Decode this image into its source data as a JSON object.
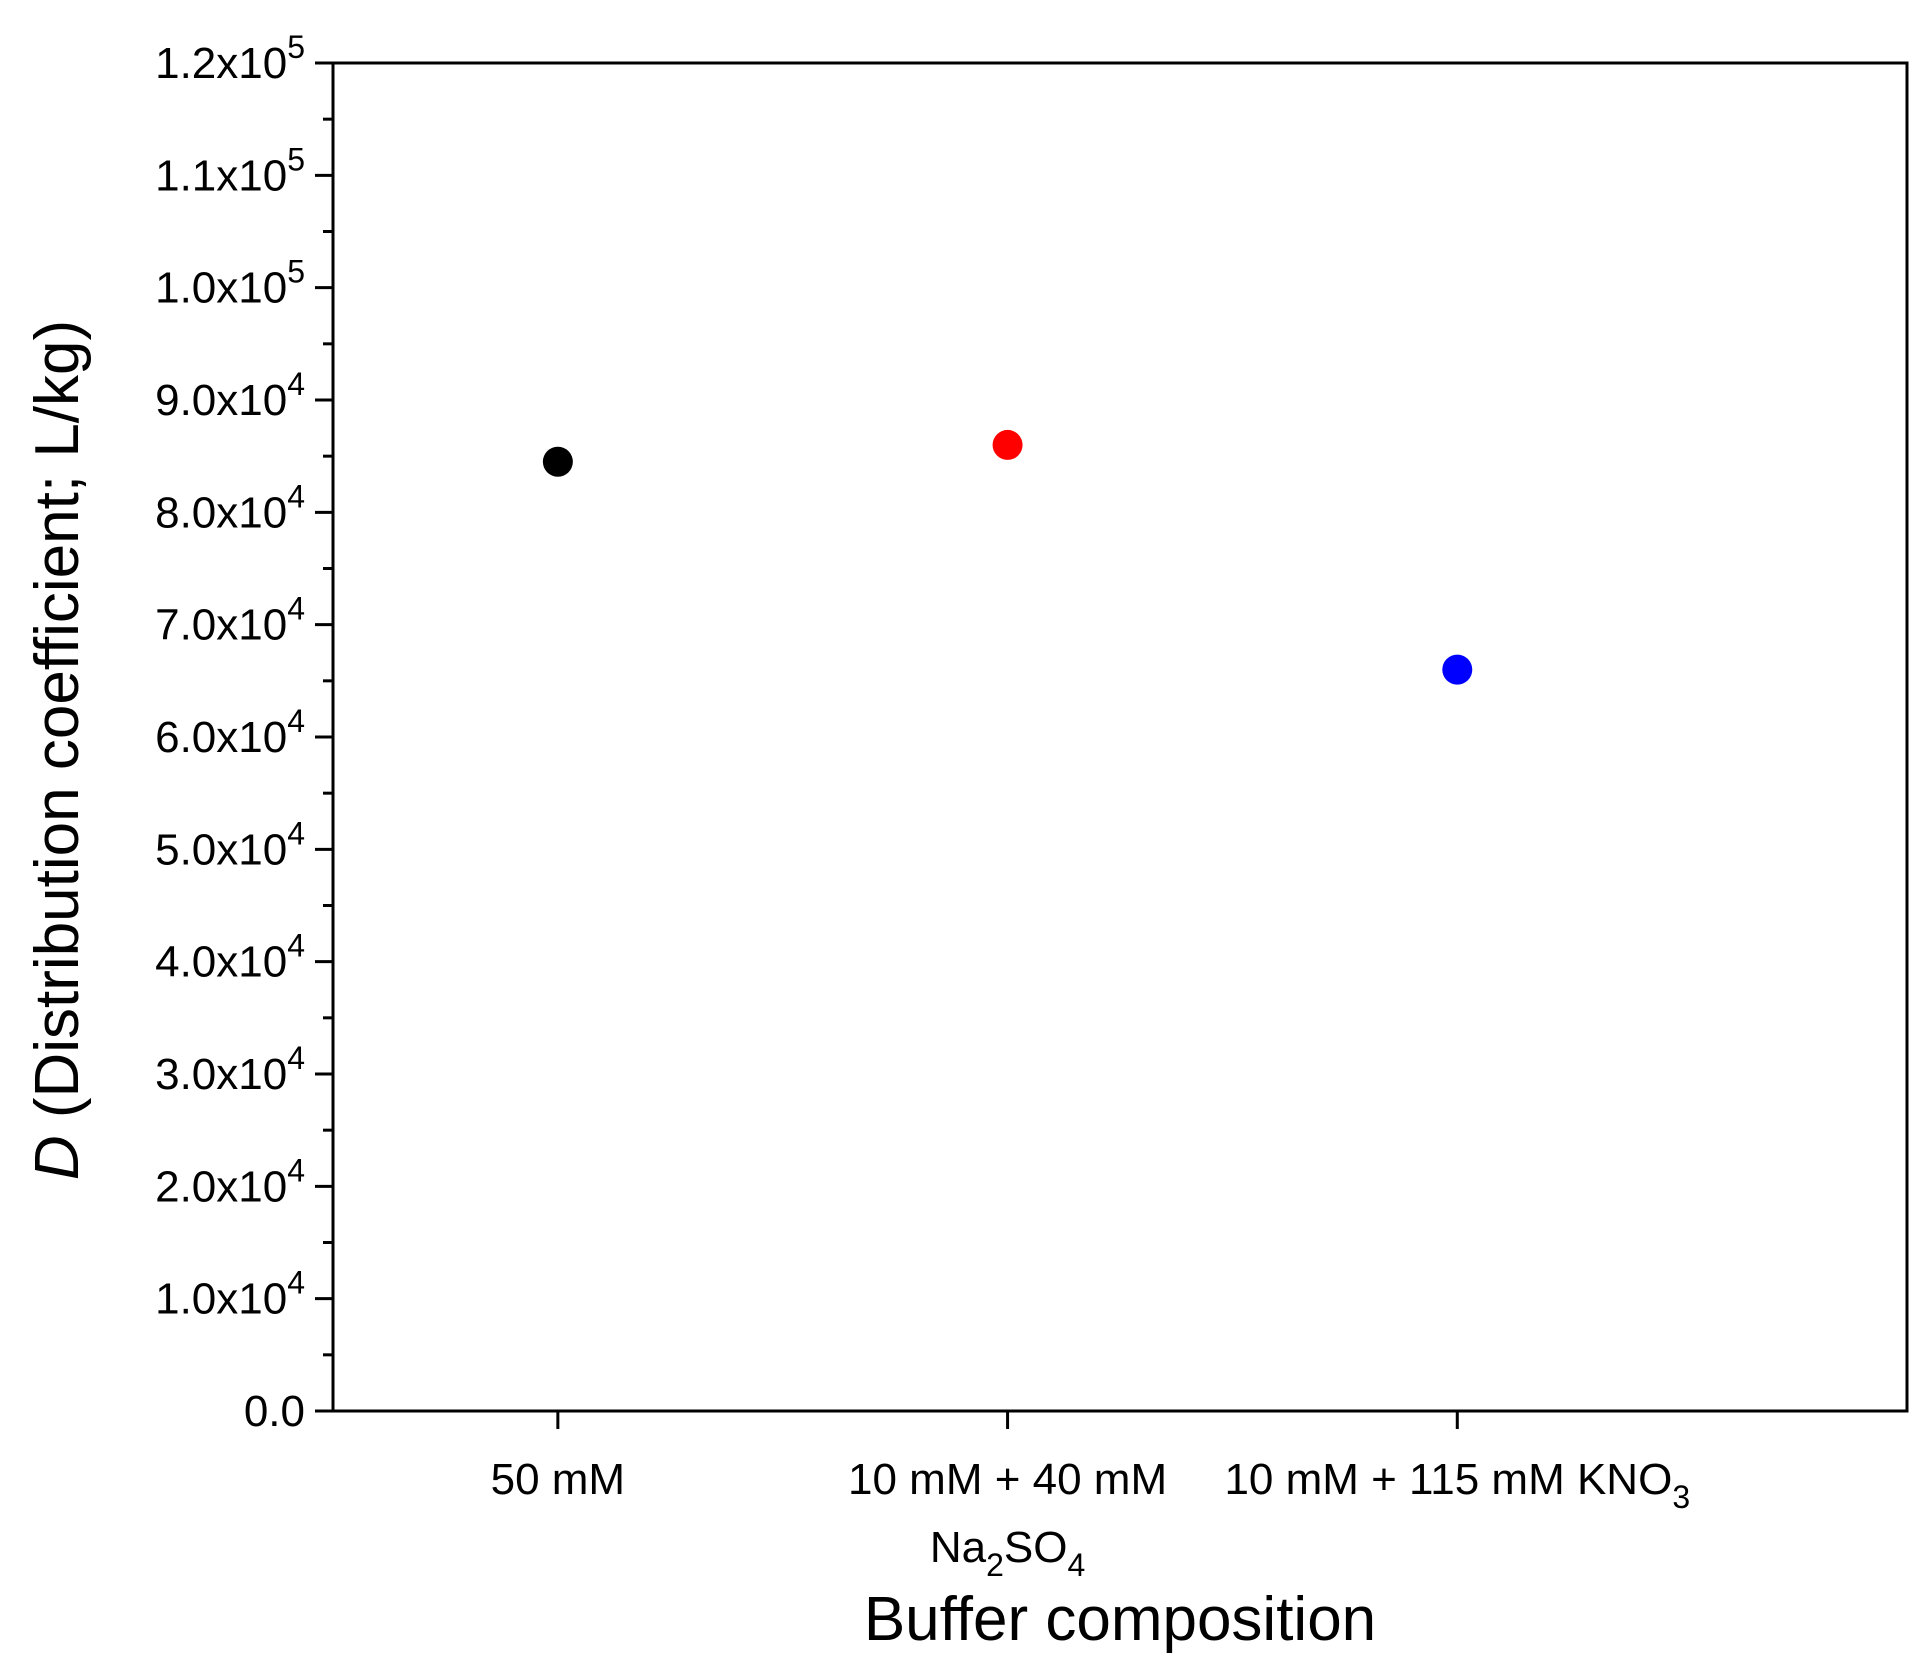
{
  "chart_data": {
    "type": "scatter",
    "title": "",
    "xlabel": "Buffer composition",
    "ylabel": {
      "symbol": "D",
      "text": " (Distribution coefficient; L/kg)"
    },
    "ylim": [
      0,
      120000
    ],
    "categories": [
      {
        "lines": [
          [
            {
              "t": "50 mM"
            }
          ]
        ]
      },
      {
        "lines": [
          [
            {
              "t": "10 mM + 40 mM"
            }
          ],
          [
            {
              "t": "Na"
            },
            {
              "t": "2",
              "sub": true
            },
            {
              "t": "SO"
            },
            {
              "t": "4",
              "sub": true
            }
          ]
        ]
      },
      {
        "lines": [
          [
            {
              "t": "10 mM + 115 mM KNO"
            },
            {
              "t": "3",
              "sub": true
            }
          ]
        ]
      }
    ],
    "y_ticks": [
      {
        "value": 0,
        "mantissa": "0.0",
        "exp": ""
      },
      {
        "value": 10000,
        "mantissa": "1.0x10",
        "exp": "4"
      },
      {
        "value": 20000,
        "mantissa": "2.0x10",
        "exp": "4"
      },
      {
        "value": 30000,
        "mantissa": "3.0x10",
        "exp": "4"
      },
      {
        "value": 40000,
        "mantissa": "4.0x10",
        "exp": "4"
      },
      {
        "value": 50000,
        "mantissa": "5.0x10",
        "exp": "4"
      },
      {
        "value": 60000,
        "mantissa": "6.0x10",
        "exp": "4"
      },
      {
        "value": 70000,
        "mantissa": "7.0x10",
        "exp": "4"
      },
      {
        "value": 80000,
        "mantissa": "8.0x10",
        "exp": "4"
      },
      {
        "value": 90000,
        "mantissa": "9.0x10",
        "exp": "4"
      },
      {
        "value": 100000,
        "mantissa": "1.0x10",
        "exp": "5"
      },
      {
        "value": 110000,
        "mantissa": "1.1x10",
        "exp": "5"
      },
      {
        "value": 120000,
        "mantissa": "1.2x10",
        "exp": "5"
      }
    ],
    "minor_tick_step": 5000,
    "points": [
      {
        "category_index": 0,
        "value": 84500,
        "color": "#000000"
      },
      {
        "category_index": 1,
        "value": 86000,
        "color": "#ff0000"
      },
      {
        "category_index": 2,
        "value": 66000,
        "color": "#0000ff"
      }
    ],
    "grid": false,
    "legend": "none"
  }
}
